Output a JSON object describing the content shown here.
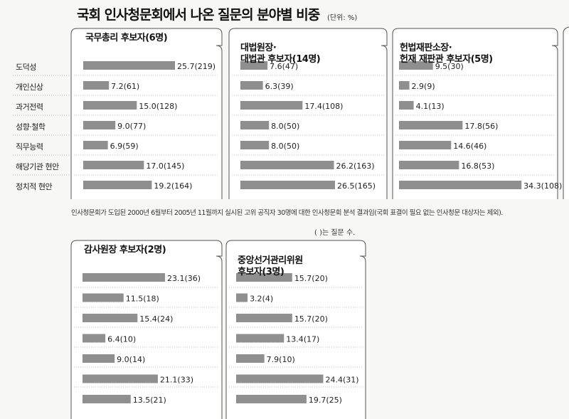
{
  "title": "국회 인사청문회에서 나온 질문의 분야별 비중",
  "unit": "(단위: %)",
  "categories": [
    "도덕성",
    "개인신상",
    "과거전력",
    "성향·철학",
    "직무능력",
    "해당기관 현안",
    "정치적 현안"
  ],
  "note": "인사청문회가 도입된 2000년 6월부터 2005년 11월까지 실시된 고위 공직자 30명에 대한 인사청문회 분석 결과임(국회 표결이 필요 없는 인사청문 대상자는 제외).",
  "note2": "(  )는 질문 수.",
  "colors": {
    "bar": "#8f8f8f",
    "panel_bg": "#ffffff",
    "line": "#555555"
  },
  "chart_data": [
    {
      "type": "bar",
      "title": "국무총리 후보자(6명)",
      "categories": [
        "도덕성",
        "개인신상",
        "과거전력",
        "성향·철학",
        "직무능력",
        "해당기관 현안",
        "정치적 현안"
      ],
      "values": [
        25.7,
        7.2,
        15.0,
        9.0,
        6.9,
        17.0,
        19.2
      ],
      "labels": [
        "25.7(219)",
        "7.2(61)",
        "15.0(128)",
        "9.0(77)",
        "6.9(59)",
        "17.0(145)",
        "19.2(164)"
      ]
    },
    {
      "type": "bar",
      "title": "대법원장·\n대법관 후보자(14명)",
      "categories": [
        "도덕성",
        "개인신상",
        "과거전력",
        "성향·철학",
        "직무능력",
        "해당기관 현안",
        "정치적 현안"
      ],
      "values": [
        7.6,
        6.3,
        17.4,
        8.0,
        8.0,
        26.2,
        26.5
      ],
      "labels": [
        "7.6(47)",
        "6.3(39)",
        "17.4(108)",
        "8.0(50)",
        "8.0(50)",
        "26.2(163)",
        "26.5(165)"
      ]
    },
    {
      "type": "bar",
      "title": "헌법재판소장·\n헌재 재판관 후보자(5명)",
      "categories": [
        "도덕성",
        "개인신상",
        "과거전력",
        "성향·철학",
        "직무능력",
        "해당기관 현안",
        "정치적 현안"
      ],
      "values": [
        9.5,
        2.9,
        4.1,
        17.8,
        14.6,
        16.8,
        34.3
      ],
      "labels": [
        "9.5(30)",
        "2.9(9)",
        "4.1(13)",
        "17.8(56)",
        "14.6(46)",
        "16.8(53)",
        "34.3(108)"
      ]
    },
    {
      "type": "bar",
      "title": "감사원장 후보자(2명)",
      "categories": [
        "도덕성",
        "개인신상",
        "과거전력",
        "성향·철학",
        "직무능력",
        "해당기관 현안",
        "정치적 현안"
      ],
      "values": [
        23.1,
        11.5,
        15.4,
        6.4,
        9.0,
        21.1,
        13.5
      ],
      "labels": [
        "23.1(36)",
        "11.5(18)",
        "15.4(24)",
        "6.4(10)",
        "9.0(14)",
        "21.1(33)",
        "13.5(21)"
      ]
    },
    {
      "type": "bar",
      "title": "중앙선거관리위원\n후보자(3명)",
      "categories": [
        "도덕성",
        "개인신상",
        "과거전력",
        "성향·철학",
        "직무능력",
        "해당기관 현안",
        "정치적 현안"
      ],
      "values": [
        15.7,
        3.2,
        15.7,
        13.4,
        7.9,
        24.4,
        19.7
      ],
      "labels": [
        "15.7(20)",
        "3.2(4)",
        "15.7(20)",
        "13.4(17)",
        "7.9(10)",
        "24.4(31)",
        "19.7(25)"
      ]
    }
  ]
}
